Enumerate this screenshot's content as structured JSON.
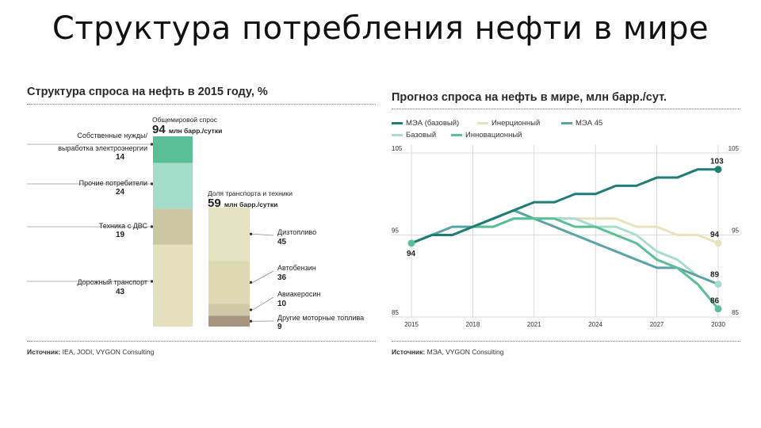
{
  "slide": {
    "title": "Структура потребления нефти в мире"
  },
  "left_panel": {
    "title": "Структура спроса на нефть в 2015 году, %",
    "total_header_label": "Общемировой спрос",
    "total_value": "94",
    "total_unit": "млн барр./сутки",
    "transport_header_label": "Доля транспорта и техники",
    "transport_value": "59",
    "transport_unit": "млн барр./сутки",
    "source_label": "Источник:",
    "source_text": "IEA, JODI, VYGON Consulting"
  },
  "right_panel": {
    "title": "Прогноз спроса на нефть в мире, млн барр./сут.",
    "source_label": "Источник:",
    "source_text": "МЭА, VYGON Consulting"
  },
  "colors": {
    "world_own_needs": "#5bbf95",
    "world_other": "#a3dcc8",
    "world_ice": "#cbc7a2",
    "world_road": "#e4e0be",
    "transport_diesel": "#e6e2c4",
    "transport_gasoline": "#ddd9b2",
    "transport_jet": "#cdc9a6",
    "transport_other": "#a89580",
    "iea_base": "#1f7c76",
    "inertia": "#e8e2bd",
    "iea45": "#5aa3a4",
    "base": "#a9dccb",
    "innovation": "#5bbf95"
  },
  "chart_data": [
    {
      "type": "bar",
      "title": "Структура спроса на нефть в 2015 году, %",
      "stacked": true,
      "bars": [
        {
          "name": "Общемировой спрос",
          "total": 94,
          "unit": "млн барр./сутки",
          "segments": [
            {
              "label": "Собственные нужды/ выработка электроэнергии",
              "value": 14
            },
            {
              "label": "Прочие потребители",
              "value": 24
            },
            {
              "label": "Техника с ДВС",
              "value": 19
            },
            {
              "label": "Дорожный транспорт",
              "value": 43
            }
          ]
        },
        {
          "name": "Доля транспорта и техники",
          "total": 59,
          "unit": "млн барр./сутки",
          "segments": [
            {
              "label": "Дизтопливо",
              "value": 45
            },
            {
              "label": "Автобензин",
              "value": 36
            },
            {
              "label": "Авиакеросин",
              "value": 10
            },
            {
              "label": "Другие моторные топлива",
              "value": 9
            }
          ]
        }
      ]
    },
    {
      "type": "line",
      "title": "Прогноз спроса на нефть в мире, млн барр./сут.",
      "x": [
        2015,
        2016,
        2017,
        2018,
        2019,
        2020,
        2021,
        2022,
        2023,
        2024,
        2025,
        2026,
        2027,
        2028,
        2029,
        2030
      ],
      "x_ticks": [
        "2015",
        "2018",
        "2021",
        "2024",
        "2027",
        "2030"
      ],
      "y_ticks": [
        "85",
        "95",
        "105"
      ],
      "ylim": [
        85,
        105
      ],
      "grid": true,
      "legend": "top",
      "series": [
        {
          "name": "МЭА (базовый)",
          "values": [
            94,
            95,
            95,
            96,
            97,
            98,
            99,
            99,
            100,
            100,
            101,
            101,
            102,
            102,
            103,
            103
          ]
        },
        {
          "name": "Инерционный",
          "values": [
            94,
            95,
            95,
            96,
            96,
            97,
            97,
            97,
            97,
            97,
            97,
            96,
            96,
            95,
            95,
            94
          ]
        },
        {
          "name": "МЭА 45",
          "values": [
            94,
            95,
            96,
            96,
            97,
            98,
            97,
            96,
            95,
            94,
            93,
            92,
            91,
            91,
            90,
            89
          ]
        },
        {
          "name": "Базовый",
          "values": [
            94,
            95,
            95,
            96,
            96,
            97,
            97,
            97,
            97,
            96,
            96,
            95,
            93,
            92,
            90,
            89
          ]
        },
        {
          "name": "Инновационный",
          "values": [
            94,
            95,
            95,
            96,
            96,
            97,
            97,
            97,
            96,
            96,
            95,
            94,
            92,
            91,
            89,
            86
          ]
        }
      ],
      "end_labels": {
        "start": "94",
        "iea_base_2030": "103",
        "inertia_2030": "94",
        "base_2030": "89",
        "innovation_2030": "86"
      }
    }
  ]
}
